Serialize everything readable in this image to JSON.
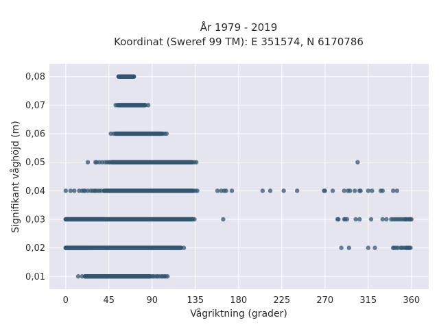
{
  "chart_data": {
    "type": "scatter",
    "title_lines": [
      "År 1979 - 2019",
      "Koordinat (Sweref 99 TM): E 351574, N 6170786"
    ],
    "xlabel": "Vågriktning (grader)",
    "ylabel": "Signifikant våghöjd (m)",
    "xlim": [
      -17,
      378
    ],
    "ylim": [
      0.0055,
      0.0845
    ],
    "x_ticks": [
      0,
      45,
      90,
      135,
      180,
      225,
      270,
      315,
      360
    ],
    "y_ticks": [
      0.01,
      0.02,
      0.03,
      0.04,
      0.05,
      0.06,
      0.07,
      0.08
    ],
    "y_tick_labels": [
      "0,01",
      "0,02",
      "0,03",
      "0,04",
      "0,05",
      "0,06",
      "0,07",
      "0,08"
    ],
    "grid": true,
    "colors": {
      "background": "#e5e5ef",
      "grid": "#ffffff",
      "marker": "#33566f"
    },
    "series": [
      {
        "y": 0.01,
        "dense_ranges": [
          [
            20,
            88
          ]
        ],
        "points": [
          13,
          17,
          90,
          91,
          93,
          95,
          96,
          98,
          100,
          101,
          103,
          104,
          106
        ]
      },
      {
        "y": 0.02,
        "dense_ranges": [
          [
            0,
            120
          ]
        ],
        "points": [
          0,
          2,
          4,
          6,
          8,
          10,
          12,
          14,
          16,
          18,
          20,
          22,
          123,
          287,
          295,
          315,
          322,
          341,
          342,
          344,
          346,
          349,
          350,
          352,
          354,
          355,
          356,
          357,
          358,
          359
        ]
      },
      {
        "y": 0.03,
        "dense_ranges": [
          [
            0,
            132
          ]
        ],
        "points": [
          0,
          2,
          4,
          6,
          8,
          10,
          12,
          14,
          16,
          18,
          20,
          22,
          24,
          26,
          28,
          30,
          32,
          34,
          36,
          38,
          40,
          134,
          164,
          283,
          284,
          290,
          291,
          293,
          302,
          306,
          318,
          330,
          334,
          339,
          341,
          343,
          345,
          347,
          349,
          351,
          353,
          354,
          355,
          357,
          358,
          359,
          360
        ]
      },
      {
        "y": 0.04,
        "dense_ranges": [
          [
            40,
            132
          ]
        ],
        "points": [
          0,
          5,
          9,
          14,
          17,
          19,
          20,
          23,
          26,
          28,
          30,
          31,
          33,
          35,
          37,
          133,
          135,
          137,
          158,
          162,
          165,
          167,
          173,
          205,
          213,
          227,
          241,
          269,
          270,
          278,
          290,
          294,
          296,
          301,
          306,
          307,
          315,
          319,
          328,
          330,
          341,
          345
        ]
      },
      {
        "y": 0.05,
        "dense_ranges": [
          [
            48,
            131
          ]
        ],
        "points": [
          23,
          31,
          32,
          35,
          38,
          41,
          43,
          45,
          46,
          132,
          134,
          136,
          304
        ]
      },
      {
        "y": 0.06,
        "dense_ranges": [
          [
            52,
            100
          ]
        ],
        "points": [
          47,
          50,
          101,
          103,
          105
        ]
      },
      {
        "y": 0.07,
        "dense_ranges": [
          [
            55,
            82
          ]
        ],
        "points": [
          52,
          54,
          83,
          86
        ]
      },
      {
        "y": 0.08,
        "dense_ranges": [
          [
            55,
            71
          ]
        ],
        "points": []
      }
    ]
  }
}
